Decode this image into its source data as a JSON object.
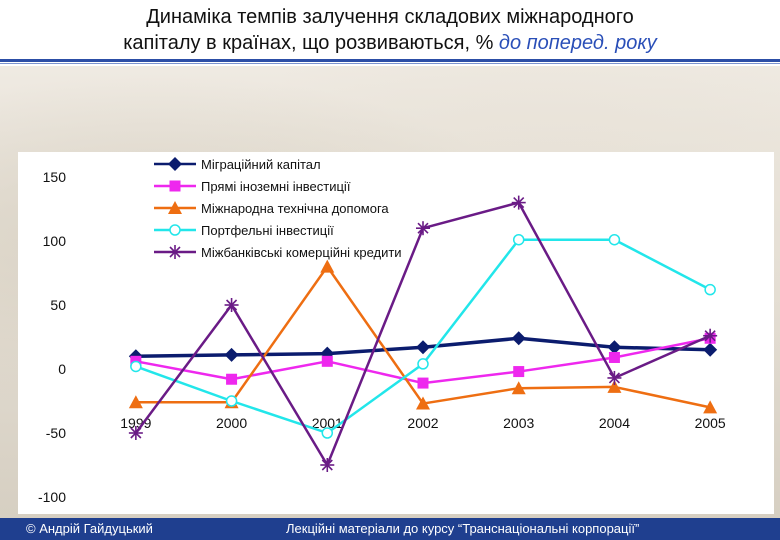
{
  "header": {
    "title_line1": "Динаміка темпів залучення складових міжнародного",
    "title_line2_main": "капіталу в країнах, що розвиваються, % ",
    "title_line2_sub": "до поперед. року"
  },
  "footer": {
    "author": "© Андрій Гайдуцький",
    "course": "Лекційні матеріали до курсу “Транснаціональні корпорації”"
  },
  "chart_data": {
    "type": "line",
    "title": "",
    "xlabel": "",
    "ylabel": "",
    "x": [
      "1999",
      "2000",
      "2001",
      "2002",
      "2003",
      "2004",
      "2005"
    ],
    "ylim": [
      -100,
      150
    ],
    "yticks": [
      "150",
      "100",
      "50",
      "0",
      "-50",
      "-100"
    ],
    "legend_position": "top-left",
    "grid": false,
    "series": [
      {
        "name": "Міграційний капітал",
        "color": "#0b1c6e",
        "marker": "diamond",
        "values": [
          10,
          11,
          12,
          17,
          24,
          17,
          15
        ]
      },
      {
        "name": "Прямі іноземні інвестиції",
        "color": "#ee28ee",
        "marker": "square",
        "values": [
          6,
          -8,
          6,
          -11,
          -2,
          9,
          24
        ]
      },
      {
        "name": "Міжнародна технічна допомога",
        "color": "#ee6e12",
        "marker": "triangle",
        "values": [
          -26,
          -26,
          80,
          -27,
          -15,
          -14,
          -30
        ]
      },
      {
        "name": "Портфельні інвестиції",
        "color": "#22e6ea",
        "marker": "circle",
        "values": [
          2,
          -25,
          -50,
          4,
          101,
          101,
          62
        ]
      },
      {
        "name": "Міжбанківські комерційні кредити",
        "color": "#6a1b86",
        "marker": "star",
        "values": [
          -50,
          50,
          -75,
          110,
          130,
          -7,
          26
        ]
      }
    ]
  }
}
